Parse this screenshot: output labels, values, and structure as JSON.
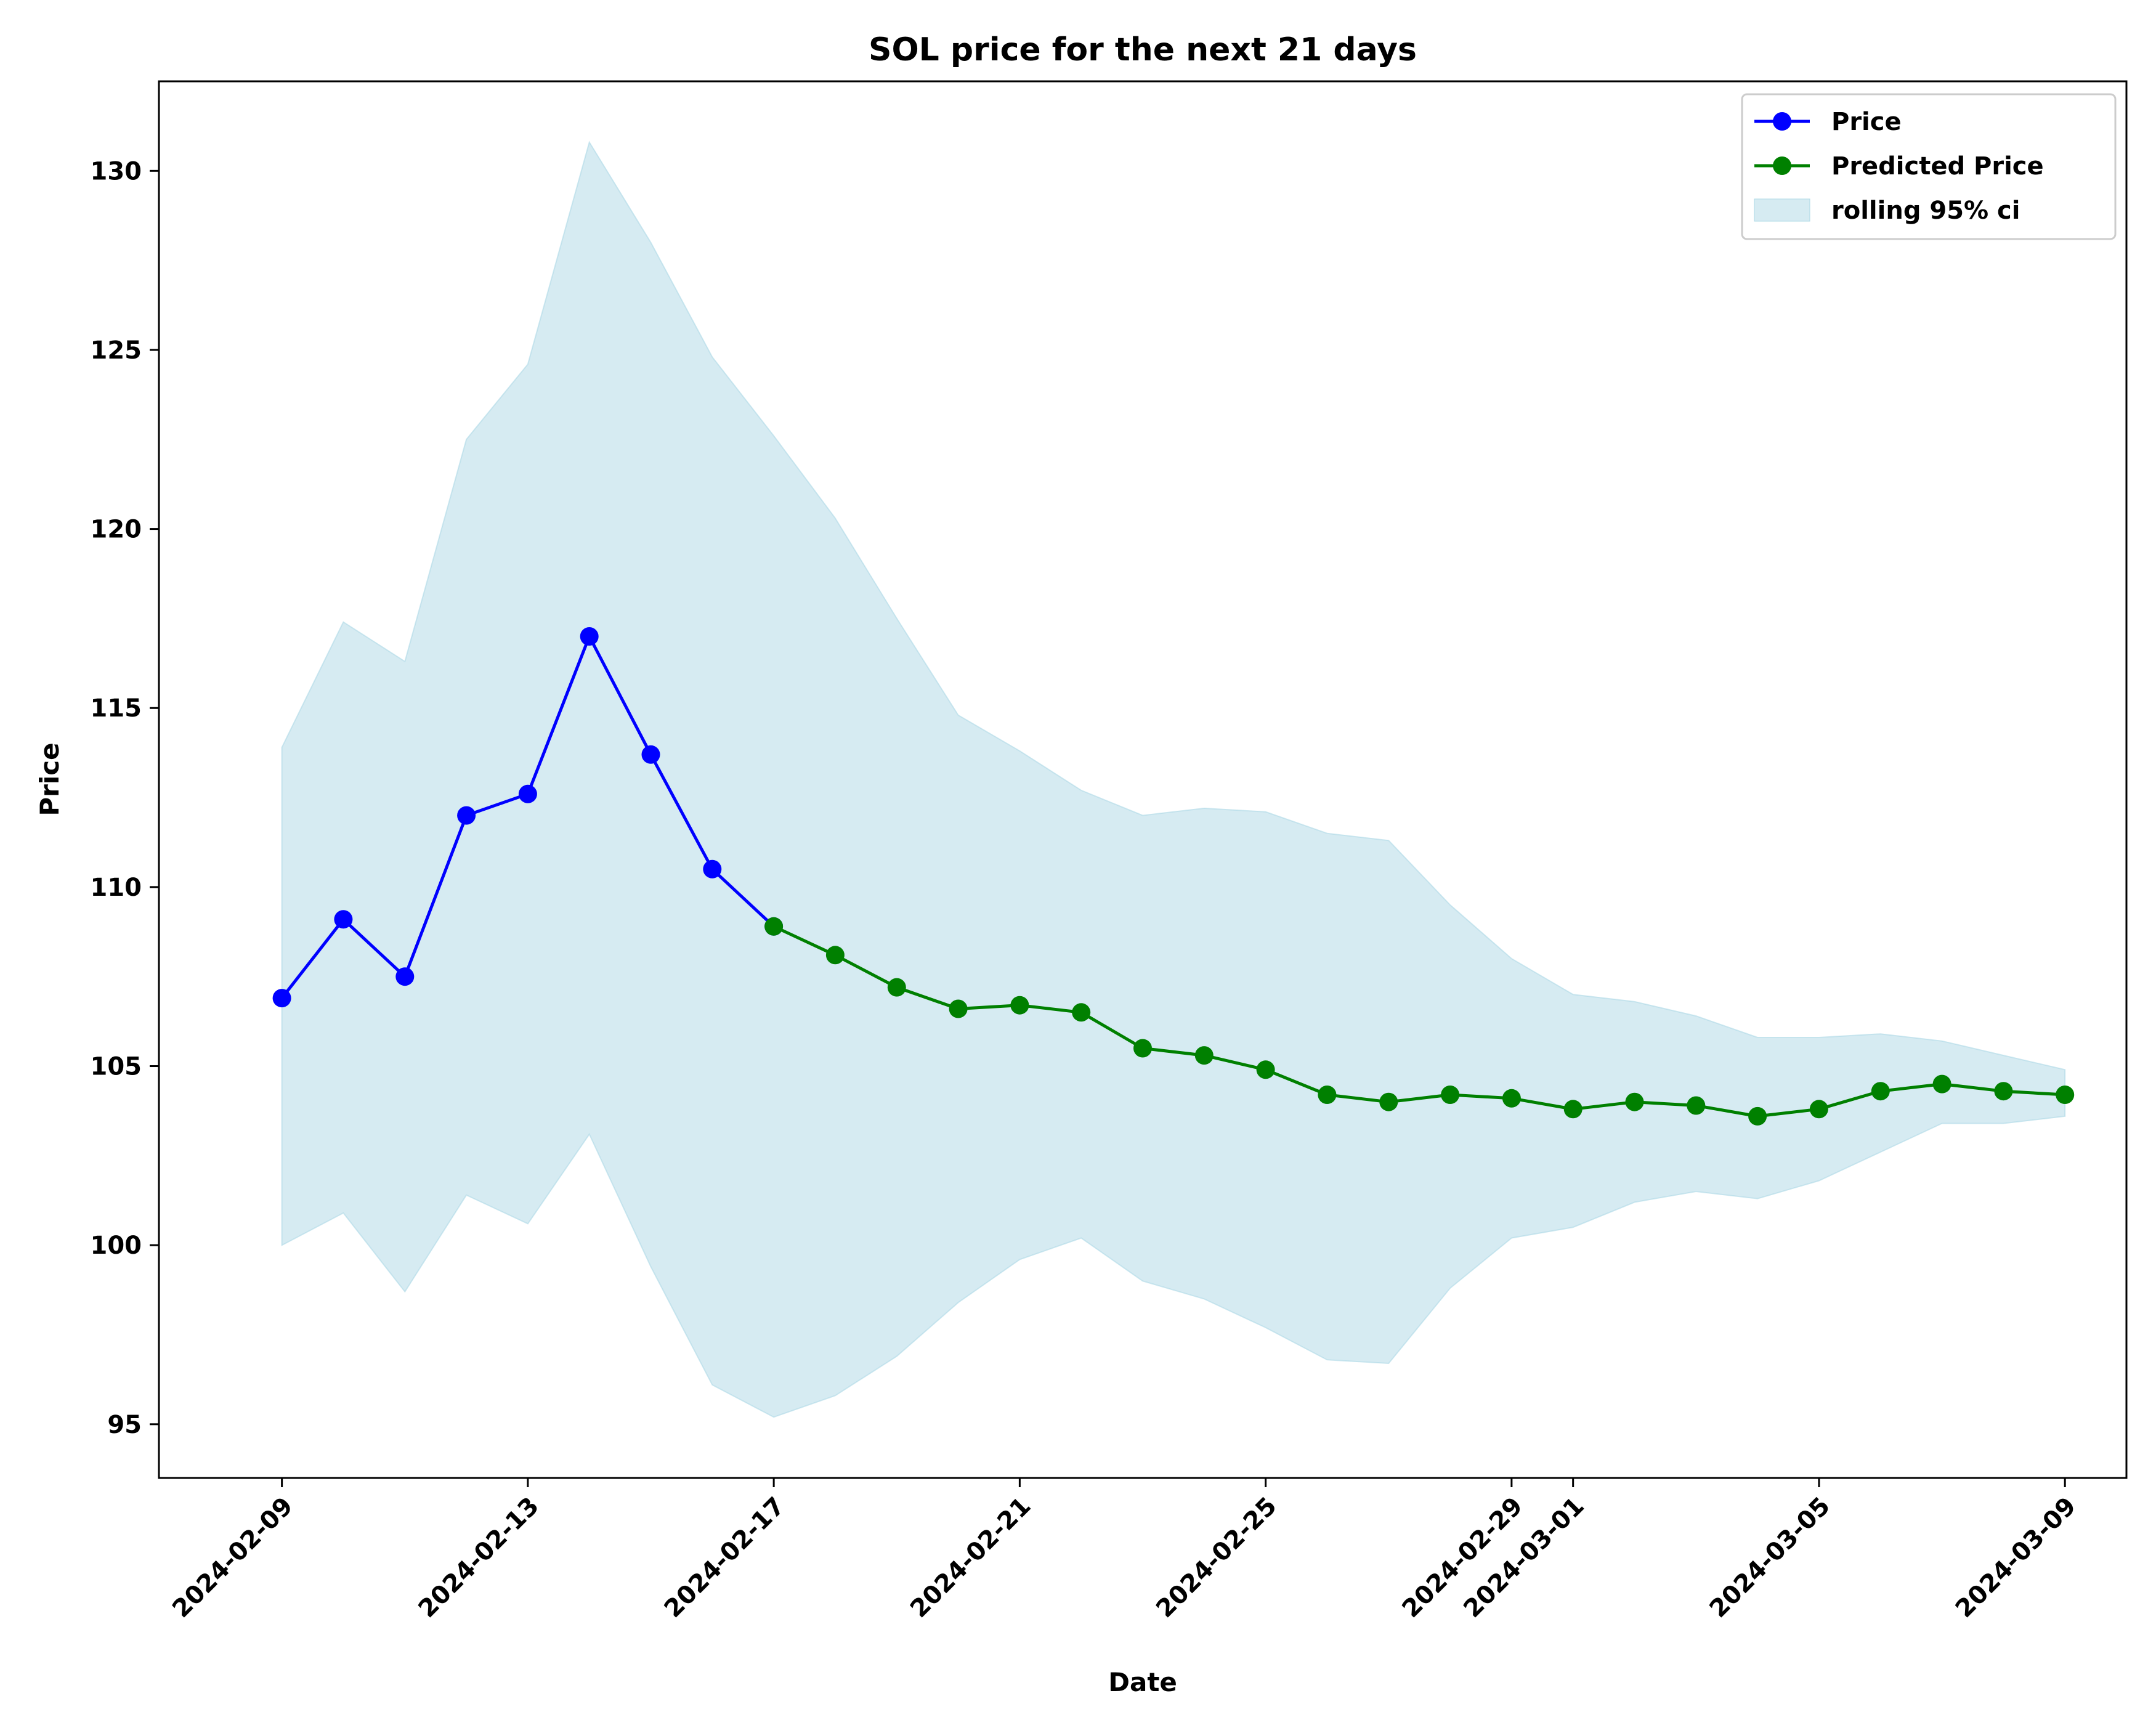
{
  "chart_data": {
    "type": "line",
    "title": "SOL price for the next 21 days",
    "xlabel": "Date",
    "ylabel": "Price",
    "ylim": [
      93.5,
      132.5
    ],
    "yticks": [
      95,
      100,
      105,
      110,
      115,
      120,
      125,
      130
    ],
    "xlim": [
      "2024-02-07",
      "2024-03-10"
    ],
    "xticks": [
      "2024-02-09",
      "2024-02-13",
      "2024-02-17",
      "2024-02-21",
      "2024-02-25",
      "2024-02-29",
      "2024-03-01",
      "2024-03-05",
      "2024-03-09"
    ],
    "grid": false,
    "legend_position": "top-right",
    "series": [
      {
        "name": "Price",
        "color": "#0000ff",
        "marker": "circle",
        "x": [
          "2024-02-09",
          "2024-02-10",
          "2024-02-11",
          "2024-02-12",
          "2024-02-13",
          "2024-02-14",
          "2024-02-15",
          "2024-02-16",
          "2024-02-17"
        ],
        "values": [
          106.9,
          109.1,
          107.5,
          112.0,
          112.6,
          117.0,
          113.7,
          110.5,
          108.9
        ]
      },
      {
        "name": "Predicted Price",
        "color": "#008000",
        "marker": "circle",
        "x": [
          "2024-02-17",
          "2024-02-18",
          "2024-02-19",
          "2024-02-20",
          "2024-02-21",
          "2024-02-22",
          "2024-02-23",
          "2024-02-24",
          "2024-02-25",
          "2024-02-26",
          "2024-02-27",
          "2024-02-28",
          "2024-02-29",
          "2024-03-01",
          "2024-03-02",
          "2024-03-03",
          "2024-03-04",
          "2024-03-05",
          "2024-03-06",
          "2024-03-07",
          "2024-03-08",
          "2024-03-09"
        ],
        "values": [
          108.9,
          108.1,
          107.2,
          106.6,
          106.7,
          106.5,
          105.5,
          105.3,
          104.9,
          104.2,
          104.0,
          104.2,
          104.1,
          103.8,
          104.0,
          103.9,
          103.6,
          103.8,
          104.3,
          104.5,
          104.3,
          104.2
        ]
      }
    ],
    "band": {
      "name": "rolling 95% ci",
      "color": "#add8e6",
      "opacity": 0.5,
      "x": [
        "2024-02-09",
        "2024-02-10",
        "2024-02-11",
        "2024-02-12",
        "2024-02-13",
        "2024-02-14",
        "2024-02-15",
        "2024-02-16",
        "2024-02-17",
        "2024-02-18",
        "2024-02-19",
        "2024-02-20",
        "2024-02-21",
        "2024-02-22",
        "2024-02-23",
        "2024-02-24",
        "2024-02-25",
        "2024-02-26",
        "2024-02-27",
        "2024-02-28",
        "2024-02-29",
        "2024-03-01",
        "2024-03-02",
        "2024-03-03",
        "2024-03-04",
        "2024-03-05",
        "2024-03-06",
        "2024-03-07",
        "2024-03-08",
        "2024-03-09"
      ],
      "upper": [
        113.9,
        117.4,
        116.3,
        122.5,
        124.6,
        130.8,
        128.0,
        124.8,
        122.6,
        120.3,
        117.5,
        114.8,
        113.8,
        112.7,
        112.0,
        112.2,
        112.1,
        111.5,
        111.3,
        109.5,
        108.0,
        107.0,
        106.8,
        106.4,
        105.8,
        105.8,
        105.9,
        105.7,
        105.3,
        104.9
      ],
      "lower": [
        100.0,
        100.9,
        98.7,
        101.4,
        100.6,
        103.1,
        99.4,
        96.1,
        95.2,
        95.8,
        96.9,
        98.4,
        99.6,
        100.2,
        99.0,
        98.5,
        97.7,
        96.8,
        96.7,
        98.8,
        100.2,
        100.5,
        101.2,
        101.5,
        101.3,
        101.8,
        102.6,
        103.4,
        103.4,
        103.6
      ]
    }
  }
}
